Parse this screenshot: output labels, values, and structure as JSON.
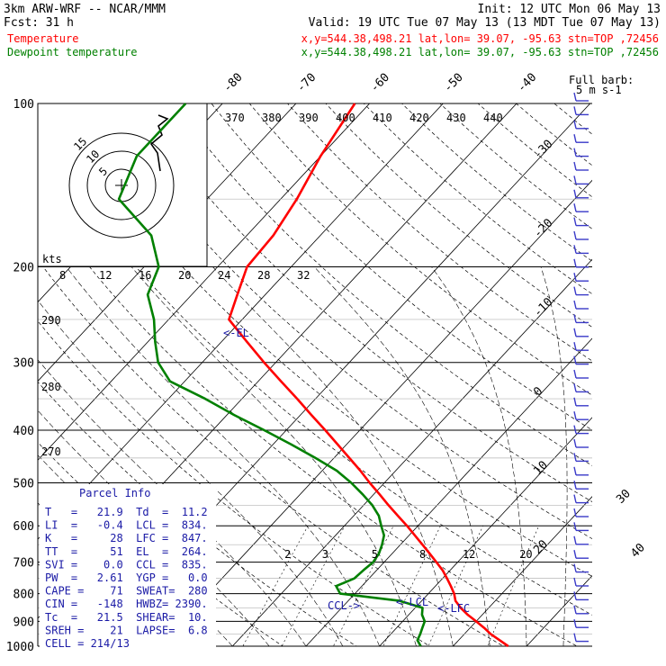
{
  "header": {
    "model": "3km ARW-WRF -- NCAR/MMM",
    "init": "Init: 12 UTC Mon 06 May 13",
    "fcst_label": "Fcst:",
    "fcst_value": "31 h",
    "valid": "Valid: 19 UTC Tue 07 May 13 (13 MDT Tue 07 May 13)",
    "temp_label": "Temperature",
    "temp_loc": "x,y=544.38,498.21   lat,lon= 39.07, -95.63  stn=TOP ,72456",
    "dew_label": "Dewpoint temperature",
    "dew_loc": "x,y=544.38,498.21   lat,lon= 39.07, -95.63  stn=TOP ,72456"
  },
  "colors": {
    "temperature": "#ff0000",
    "dewpoint": "#008000",
    "parcel_text": "#1a1aa6",
    "grid": "#000000"
  },
  "chart_data": {
    "type": "line",
    "pressure_ticks": [
      100,
      200,
      300,
      400,
      500,
      600,
      700,
      800,
      900,
      1000
    ],
    "temp_top_labels": [
      "-80",
      "-70",
      "-60",
      "-50",
      "-40"
    ],
    "temp_right_labels": [
      "-30",
      "-20",
      "-10",
      "0",
      "10",
      "20",
      "30",
      "40"
    ],
    "theta_labels": [
      "370",
      "380",
      "390",
      "400",
      "410",
      "420",
      "430",
      "440"
    ],
    "theta_left_labels": [
      "290",
      "280",
      "270"
    ],
    "mixing_labels": [
      "2",
      "3",
      "5",
      "8",
      "12",
      "20"
    ],
    "hodograph": {
      "units": "kts",
      "ring_labels": [
        "15",
        "10",
        "5"
      ],
      "speed_ticks": [
        "8",
        "12",
        "16",
        "20",
        "24",
        "28",
        "32"
      ]
    },
    "wind_legend": {
      "title": "Full barb:",
      "value": "5 m s-1"
    },
    "annotations": {
      "el": "<-EL",
      "lcl": "<-LCL",
      "lfc": "<-LFC",
      "ccl": "CCL->"
    },
    "series": [
      {
        "name": "Temperature",
        "p": [
          1000,
          975,
          950,
          925,
          900,
          875,
          850,
          825,
          800,
          775,
          750,
          725,
          700,
          675,
          650,
          625,
          600,
          575,
          550,
          525,
          500,
          475,
          450,
          425,
          400,
          375,
          350,
          325,
          300,
          275,
          250,
          225,
          200,
          175,
          150,
          125,
          100
        ],
        "t": [
          27.5,
          25.6,
          23.6,
          21.9,
          20.0,
          18.0,
          16.2,
          14.6,
          13.5,
          12.1,
          10.6,
          9.0,
          7.1,
          5.1,
          3.0,
          0.8,
          -1.5,
          -4.0,
          -6.6,
          -9.2,
          -12.0,
          -14.8,
          -17.9,
          -21.2,
          -24.7,
          -28.5,
          -32.5,
          -36.9,
          -41.6,
          -46.5,
          -51.8,
          -53.8,
          -56.0,
          -56.4,
          -57.8,
          -60.0,
          -62.0
        ]
      },
      {
        "name": "Dewpoint temperature",
        "p": [
          1000,
          975,
          950,
          925,
          900,
          875,
          850,
          825,
          800,
          775,
          750,
          725,
          700,
          675,
          650,
          625,
          600,
          575,
          550,
          525,
          500,
          475,
          450,
          425,
          400,
          375,
          350,
          325,
          300,
          275,
          250,
          225,
          200,
          175,
          150,
          125,
          100
        ],
        "t": [
          15.6,
          14.4,
          14.0,
          13.5,
          13.0,
          11.8,
          11.0,
          7.0,
          -2.0,
          -3.5,
          -2.0,
          -1.8,
          -1.5,
          -1.8,
          -2.5,
          -3.4,
          -5.0,
          -6.6,
          -8.8,
          -11.5,
          -14.5,
          -18.0,
          -22.5,
          -27.5,
          -33.0,
          -39.0,
          -45.0,
          -52.0,
          -56.0,
          -59.0,
          -62.0,
          -66.0,
          -68.0,
          -73.0,
          -82.0,
          -85.0,
          -85.0
        ]
      }
    ]
  },
  "parcel_info": {
    "title": "Parcel Info",
    "rows": [
      "T   =   21.9  Td  =  11.2",
      "LI  =   -0.4  LCL =  834.",
      "K   =     28  LFC =  847.",
      "TT  =     51  EL  =  264.",
      "SVI =    0.0  CCL =  835.",
      "PW  =   2.61  YGP =   0.0",
      "CAPE =    71  SWEAT=  280",
      "CIN =   -148  HWBZ= 2390.",
      "Tc  =   21.5  SHEAR=  10.",
      "SREH =    21  LAPSE=  6.8",
      "CELL = 214/13"
    ]
  }
}
